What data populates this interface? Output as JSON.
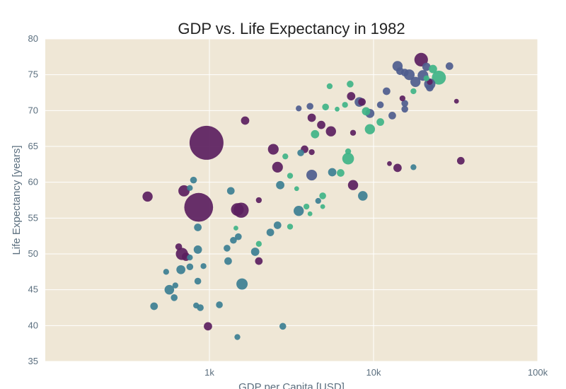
{
  "chart_data": {
    "type": "scatter",
    "title": "GDP vs. Life Expectancy in 1982",
    "xlabel": "GDP per Capita [USD]",
    "ylabel": "Life Expectancy [years]",
    "x_scale": "log",
    "xlim": [
      100,
      100000
    ],
    "ylim": [
      35,
      80
    ],
    "x_ticks": [
      1000,
      10000,
      100000
    ],
    "x_tick_labels": [
      "1k",
      "10k",
      "100k"
    ],
    "y_ticks": [
      35,
      40,
      45,
      50,
      55,
      60,
      65,
      70,
      75,
      80
    ],
    "y_tick_labels": [
      "35",
      "40",
      "45",
      "50",
      "55",
      "60",
      "65",
      "70",
      "75",
      "80"
    ],
    "grid": true,
    "legend": "none",
    "colors": {
      "plot_background": "#efe7d6",
      "grid": "#ffffff",
      "series_purple": "#5b1f5f",
      "series_indigo": "#4e5d8e",
      "series_teal": "#3c7f92",
      "series_green": "#3fb487"
    },
    "points": [
      {
        "x": 960,
        "y": 65.5,
        "size": 100,
        "color": "#5b1f5f"
      },
      {
        "x": 860,
        "y": 56.5,
        "size": 72,
        "color": "#5b1f5f"
      },
      {
        "x": 1560,
        "y": 56.1,
        "size": 20,
        "color": "#5b1f5f"
      },
      {
        "x": 1480,
        "y": 56.2,
        "size": 14,
        "color": "#5b1f5f"
      },
      {
        "x": 420,
        "y": 58.0,
        "size": 9,
        "color": "#5b1f5f"
      },
      {
        "x": 700,
        "y": 58.8,
        "size": 11,
        "color": "#5b1f5f"
      },
      {
        "x": 680,
        "y": 50.0,
        "size": 13,
        "color": "#5b1f5f"
      },
      {
        "x": 650,
        "y": 51.0,
        "size": 4,
        "color": "#5b1f5f"
      },
      {
        "x": 720,
        "y": 49.6,
        "size": 6,
        "color": "#5b1f5f"
      },
      {
        "x": 2450,
        "y": 64.6,
        "size": 10,
        "color": "#5b1f5f"
      },
      {
        "x": 2600,
        "y": 62.1,
        "size": 10,
        "color": "#5b1f5f"
      },
      {
        "x": 1650,
        "y": 68.6,
        "size": 6,
        "color": "#5b1f5f"
      },
      {
        "x": 2000,
        "y": 49.0,
        "size": 5,
        "color": "#5b1f5f"
      },
      {
        "x": 980,
        "y": 39.9,
        "size": 6,
        "color": "#5b1f5f"
      },
      {
        "x": 2000,
        "y": 57.5,
        "size": 3,
        "color": "#5b1f5f"
      },
      {
        "x": 4200,
        "y": 69.0,
        "size": 6,
        "color": "#5b1f5f"
      },
      {
        "x": 4800,
        "y": 68.0,
        "size": 6,
        "color": "#5b1f5f"
      },
      {
        "x": 5500,
        "y": 67.1,
        "size": 9,
        "color": "#5b1f5f"
      },
      {
        "x": 7500,
        "y": 59.6,
        "size": 9,
        "color": "#5b1f5f"
      },
      {
        "x": 7300,
        "y": 72.0,
        "size": 6,
        "color": "#5b1f5f"
      },
      {
        "x": 8500,
        "y": 71.2,
        "size": 5,
        "color": "#5b1f5f"
      },
      {
        "x": 3800,
        "y": 64.6,
        "size": 5,
        "color": "#5b1f5f"
      },
      {
        "x": 4200,
        "y": 64.2,
        "size": 3,
        "color": "#5b1f5f"
      },
      {
        "x": 7500,
        "y": 66.9,
        "size": 3,
        "color": "#5b1f5f"
      },
      {
        "x": 14000,
        "y": 62.0,
        "size": 6,
        "color": "#5b1f5f"
      },
      {
        "x": 34000,
        "y": 63.0,
        "size": 5,
        "color": "#5b1f5f"
      },
      {
        "x": 19500,
        "y": 77.1,
        "size": 16,
        "color": "#5b1f5f"
      },
      {
        "x": 15000,
        "y": 71.7,
        "size": 3,
        "color": "#5b1f5f"
      },
      {
        "x": 22000,
        "y": 74.0,
        "size": 3,
        "color": "#5b1f5f"
      },
      {
        "x": 12500,
        "y": 62.6,
        "size": 2,
        "color": "#5b1f5f"
      },
      {
        "x": 32000,
        "y": 71.3,
        "size": 2,
        "color": "#5b1f5f"
      },
      {
        "x": 4200,
        "y": 61.0,
        "size": 10,
        "color": "#4e5d8e"
      },
      {
        "x": 8200,
        "y": 71.2,
        "size": 8,
        "color": "#4e5d8e"
      },
      {
        "x": 9500,
        "y": 69.6,
        "size": 7,
        "color": "#4e5d8e"
      },
      {
        "x": 14000,
        "y": 76.2,
        "size": 9,
        "color": "#4e5d8e"
      },
      {
        "x": 16500,
        "y": 75.0,
        "size": 10,
        "color": "#4e5d8e"
      },
      {
        "x": 18000,
        "y": 74.0,
        "size": 9,
        "color": "#4e5d8e"
      },
      {
        "x": 20000,
        "y": 74.9,
        "size": 10,
        "color": "#4e5d8e"
      },
      {
        "x": 22000,
        "y": 73.7,
        "size": 11,
        "color": "#4e5d8e"
      },
      {
        "x": 21000,
        "y": 76.1,
        "size": 6,
        "color": "#4e5d8e"
      },
      {
        "x": 15500,
        "y": 75.3,
        "size": 5,
        "color": "#4e5d8e"
      },
      {
        "x": 14500,
        "y": 75.5,
        "size": 5,
        "color": "#4e5d8e"
      },
      {
        "x": 29000,
        "y": 76.2,
        "size": 5,
        "color": "#4e5d8e"
      },
      {
        "x": 13000,
        "y": 69.3,
        "size": 5,
        "color": "#4e5d8e"
      },
      {
        "x": 12000,
        "y": 72.7,
        "size": 5,
        "color": "#4e5d8e"
      },
      {
        "x": 15500,
        "y": 70.2,
        "size": 4,
        "color": "#4e5d8e"
      },
      {
        "x": 15500,
        "y": 71.0,
        "size": 4,
        "color": "#4e5d8e"
      },
      {
        "x": 4100,
        "y": 70.6,
        "size": 4,
        "color": "#4e5d8e"
      },
      {
        "x": 3500,
        "y": 70.3,
        "size": 3,
        "color": "#4e5d8e"
      },
      {
        "x": 11000,
        "y": 70.8,
        "size": 4,
        "color": "#4e5d8e"
      },
      {
        "x": 22000,
        "y": 73.2,
        "size": 5,
        "color": "#4e5d8e"
      },
      {
        "x": 1580,
        "y": 45.8,
        "size": 11,
        "color": "#3c7f92"
      },
      {
        "x": 570,
        "y": 45.0,
        "size": 8,
        "color": "#3c7f92"
      },
      {
        "x": 670,
        "y": 47.8,
        "size": 7,
        "color": "#3c7f92"
      },
      {
        "x": 850,
        "y": 50.6,
        "size": 6,
        "color": "#3c7f92"
      },
      {
        "x": 1900,
        "y": 50.3,
        "size": 6,
        "color": "#3c7f92"
      },
      {
        "x": 3500,
        "y": 56.0,
        "size": 9,
        "color": "#3c7f92"
      },
      {
        "x": 2700,
        "y": 59.6,
        "size": 6,
        "color": "#3c7f92"
      },
      {
        "x": 1350,
        "y": 58.8,
        "size": 5,
        "color": "#3c7f92"
      },
      {
        "x": 8600,
        "y": 58.1,
        "size": 8,
        "color": "#3c7f92"
      },
      {
        "x": 5600,
        "y": 61.4,
        "size": 6,
        "color": "#3c7f92"
      },
      {
        "x": 460,
        "y": 42.7,
        "size": 5,
        "color": "#3c7f92"
      },
      {
        "x": 610,
        "y": 43.9,
        "size": 4,
        "color": "#3c7f92"
      },
      {
        "x": 880,
        "y": 42.5,
        "size": 4,
        "color": "#3c7f92"
      },
      {
        "x": 1150,
        "y": 42.9,
        "size": 4,
        "color": "#3c7f92"
      },
      {
        "x": 2800,
        "y": 39.9,
        "size": 4,
        "color": "#3c7f92"
      },
      {
        "x": 850,
        "y": 53.7,
        "size": 5,
        "color": "#3c7f92"
      },
      {
        "x": 2350,
        "y": 53.0,
        "size": 5,
        "color": "#3c7f92"
      },
      {
        "x": 2600,
        "y": 54.0,
        "size": 5,
        "color": "#3c7f92"
      },
      {
        "x": 1300,
        "y": 49.0,
        "size": 5,
        "color": "#3c7f92"
      },
      {
        "x": 1400,
        "y": 51.9,
        "size": 4,
        "color": "#3c7f92"
      },
      {
        "x": 1280,
        "y": 50.8,
        "size": 4,
        "color": "#3c7f92"
      },
      {
        "x": 1500,
        "y": 52.4,
        "size": 4,
        "color": "#3c7f92"
      },
      {
        "x": 760,
        "y": 59.2,
        "size": 3,
        "color": "#3c7f92"
      },
      {
        "x": 800,
        "y": 60.3,
        "size": 4,
        "color": "#3c7f92"
      },
      {
        "x": 850,
        "y": 46.2,
        "size": 4,
        "color": "#3c7f92"
      },
      {
        "x": 760,
        "y": 48.2,
        "size": 4,
        "color": "#3c7f92"
      },
      {
        "x": 620,
        "y": 45.6,
        "size": 3,
        "color": "#3c7f92"
      },
      {
        "x": 545,
        "y": 47.5,
        "size": 3,
        "color": "#3c7f92"
      },
      {
        "x": 920,
        "y": 48.3,
        "size": 3,
        "color": "#3c7f92"
      },
      {
        "x": 760,
        "y": 49.5,
        "size": 3,
        "color": "#3c7f92"
      },
      {
        "x": 830,
        "y": 42.8,
        "size": 3,
        "color": "#3c7f92"
      },
      {
        "x": 1480,
        "y": 38.4,
        "size": 3,
        "color": "#3c7f92"
      },
      {
        "x": 3600,
        "y": 64.1,
        "size": 4,
        "color": "#3c7f92"
      },
      {
        "x": 17500,
        "y": 62.1,
        "size": 3,
        "color": "#3c7f92"
      },
      {
        "x": 4600,
        "y": 57.4,
        "size": 3,
        "color": "#3c7f92"
      },
      {
        "x": 7000,
        "y": 63.3,
        "size": 12,
        "color": "#3fb487"
      },
      {
        "x": 9500,
        "y": 67.4,
        "size": 9,
        "color": "#3fb487"
      },
      {
        "x": 25000,
        "y": 74.6,
        "size": 17,
        "color": "#3fb487"
      },
      {
        "x": 23000,
        "y": 75.8,
        "size": 6,
        "color": "#3fb487"
      },
      {
        "x": 4400,
        "y": 66.7,
        "size": 6,
        "color": "#3fb487"
      },
      {
        "x": 6300,
        "y": 61.3,
        "size": 5,
        "color": "#3fb487"
      },
      {
        "x": 9000,
        "y": 69.9,
        "size": 6,
        "color": "#3fb487"
      },
      {
        "x": 7200,
        "y": 73.7,
        "size": 4,
        "color": "#3fb487"
      },
      {
        "x": 4900,
        "y": 58.1,
        "size": 4,
        "color": "#3fb487"
      },
      {
        "x": 3100,
        "y": 60.9,
        "size": 3,
        "color": "#3fb487"
      },
      {
        "x": 3900,
        "y": 56.6,
        "size": 3,
        "color": "#3fb487"
      },
      {
        "x": 3100,
        "y": 53.8,
        "size": 3,
        "color": "#3fb487"
      },
      {
        "x": 2000,
        "y": 51.4,
        "size": 3,
        "color": "#3fb487"
      },
      {
        "x": 6700,
        "y": 70.8,
        "size": 3,
        "color": "#3fb487"
      },
      {
        "x": 5100,
        "y": 70.5,
        "size": 4,
        "color": "#3fb487"
      },
      {
        "x": 5400,
        "y": 73.4,
        "size": 3,
        "color": "#3fb487"
      },
      {
        "x": 2900,
        "y": 63.6,
        "size": 3,
        "color": "#3fb487"
      },
      {
        "x": 7000,
        "y": 64.3,
        "size": 3,
        "color": "#3fb487"
      },
      {
        "x": 11000,
        "y": 68.4,
        "size": 5,
        "color": "#3fb487"
      },
      {
        "x": 17500,
        "y": 72.7,
        "size": 3,
        "color": "#3fb487"
      },
      {
        "x": 21000,
        "y": 74.5,
        "size": 3,
        "color": "#3fb487"
      },
      {
        "x": 3400,
        "y": 59.1,
        "size": 2,
        "color": "#3fb487"
      },
      {
        "x": 4100,
        "y": 55.6,
        "size": 2,
        "color": "#3fb487"
      },
      {
        "x": 4900,
        "y": 56.6,
        "size": 2,
        "color": "#3fb487"
      },
      {
        "x": 1450,
        "y": 53.6,
        "size": 2,
        "color": "#3fb487"
      },
      {
        "x": 6000,
        "y": 70.2,
        "size": 2,
        "color": "#3fb487"
      }
    ]
  }
}
